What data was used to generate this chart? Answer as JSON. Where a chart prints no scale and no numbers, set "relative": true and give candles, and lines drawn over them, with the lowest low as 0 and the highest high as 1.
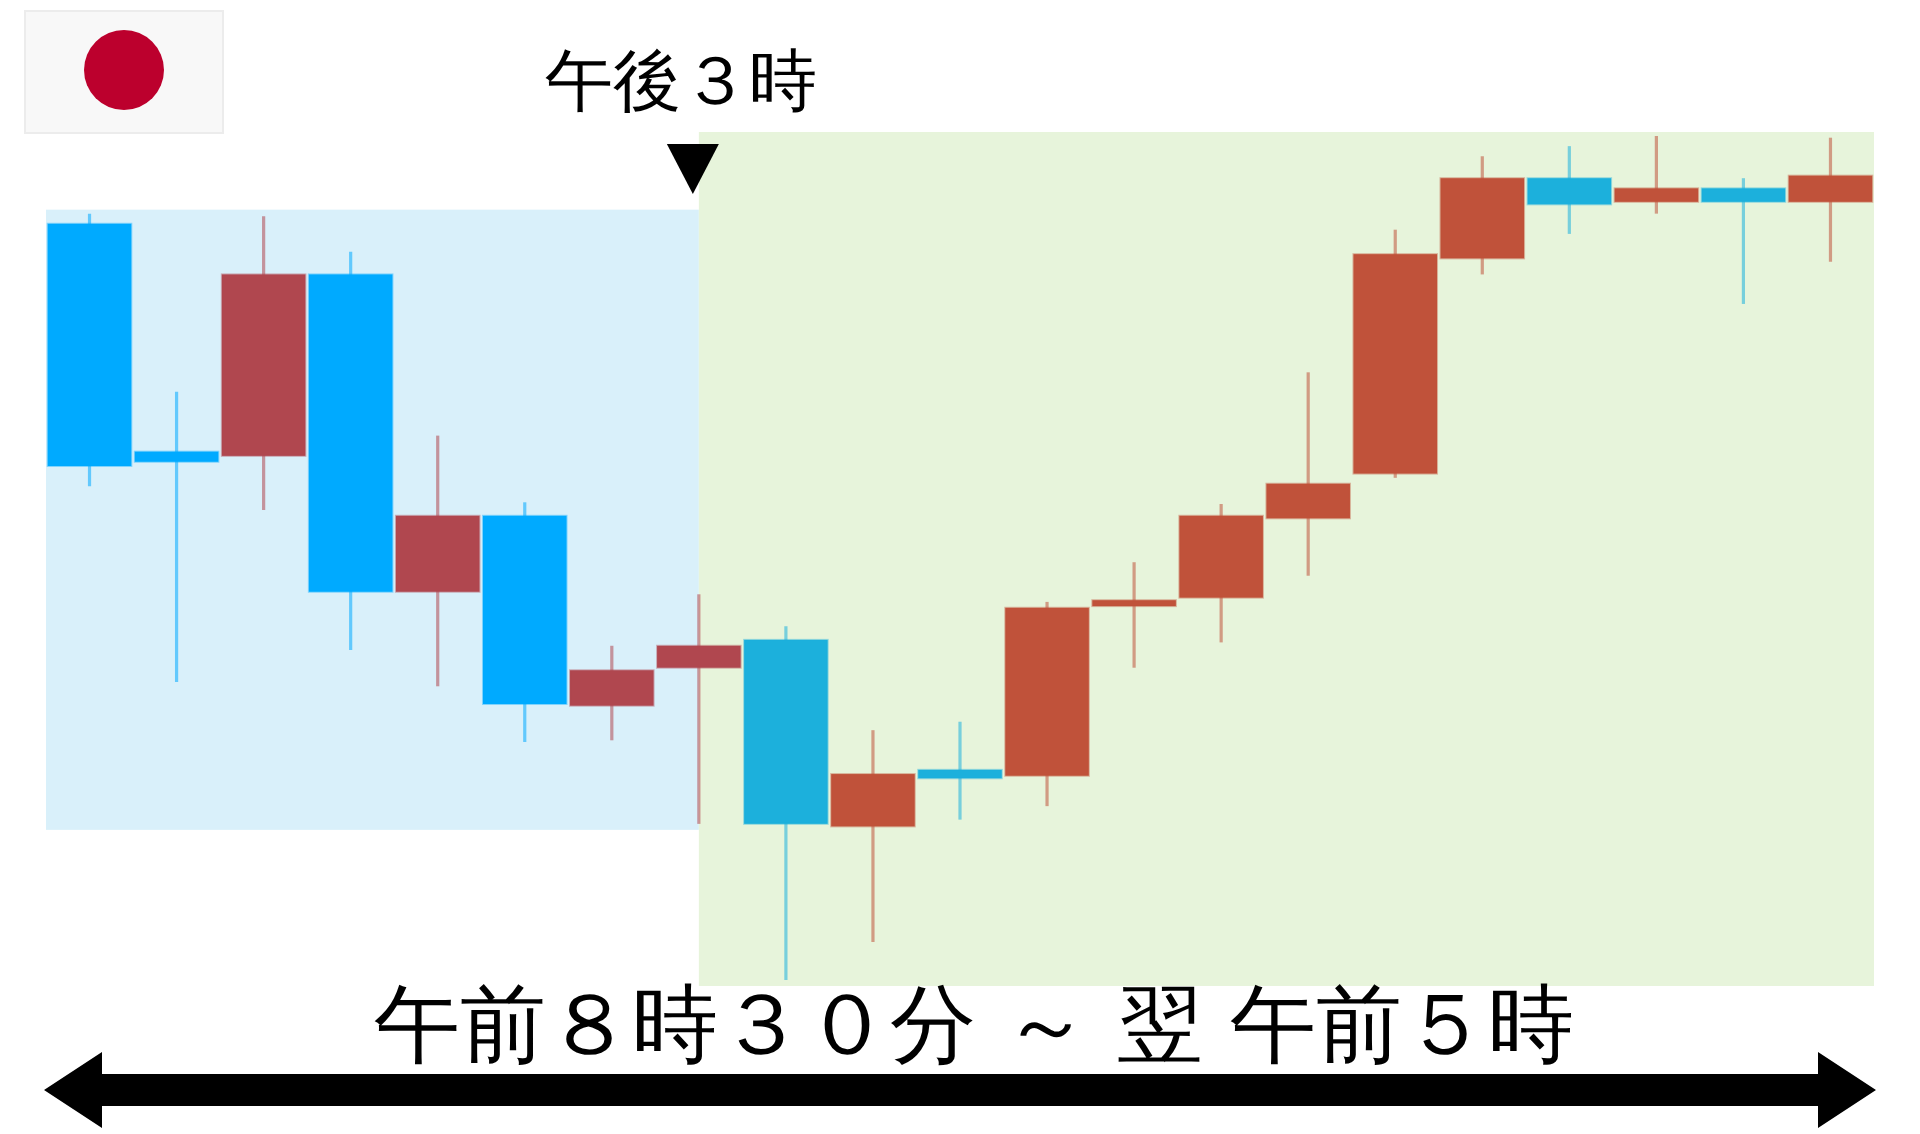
{
  "chart_data": {
    "type": "candlestick",
    "relative": true,
    "categories": [
      null,
      null,
      null,
      null,
      null,
      null,
      null,
      null,
      null,
      null,
      null,
      null,
      null,
      null,
      null,
      null,
      null,
      null,
      null,
      null,
      null
    ],
    "ohlc": [
      [
        0.896,
        0.908,
        0.585,
        0.609
      ],
      [
        0.626,
        0.697,
        0.353,
        0.614
      ],
      [
        0.621,
        0.905,
        0.557,
        0.836
      ],
      [
        0.836,
        0.863,
        0.391,
        0.46
      ],
      [
        0.46,
        0.645,
        0.348,
        0.55
      ],
      [
        0.55,
        0.566,
        0.282,
        0.327
      ],
      [
        0.325,
        0.396,
        0.284,
        0.367
      ],
      [
        0.37,
        0.457,
        0.185,
        0.396
      ],
      [
        0.403,
        0.419,
        0,
        0.185
      ],
      [
        0.182,
        0.296,
        0.045,
        0.244
      ],
      [
        0.249,
        0.306,
        0.19,
        0.239
      ],
      [
        0.242,
        0.448,
        0.206,
        0.441
      ],
      [
        0.443,
        0.495,
        0.37,
        0.45
      ],
      [
        0.453,
        0.564,
        0.4,
        0.55
      ],
      [
        0.547,
        0.72,
        0.479,
        0.588
      ],
      [
        0.6,
        0.889,
        0.595,
        0.86
      ],
      [
        0.855,
        0.976,
        0.836,
        0.95
      ],
      [
        0.95,
        0.988,
        0.884,
        0.919
      ],
      [
        0.922,
        1,
        0.908,
        0.938
      ],
      [
        0.938,
        0.95,
        0.801,
        0.922
      ],
      [
        0.922,
        0.998,
        0.851,
        0.953
      ]
    ],
    "colors": [
      "#00aaff",
      "#00aaff",
      "#b0474f",
      "#00aaff",
      "#b0474f",
      "#00aaff",
      "#b0474f",
      "#b0474f",
      "#1cb0dc",
      "#c0523a",
      "#1cb0dc",
      "#c0523a",
      "#c0523a",
      "#c0523a",
      "#c0523a",
      "#c0523a",
      "#c0523a",
      "#1cb0dc",
      "#c0523a",
      "#1cb0dc",
      "#c0523a"
    ],
    "annotations": [
      "午後３時",
      "午前８時３０分 ～ 翌 午前５時"
    ]
  }
}
